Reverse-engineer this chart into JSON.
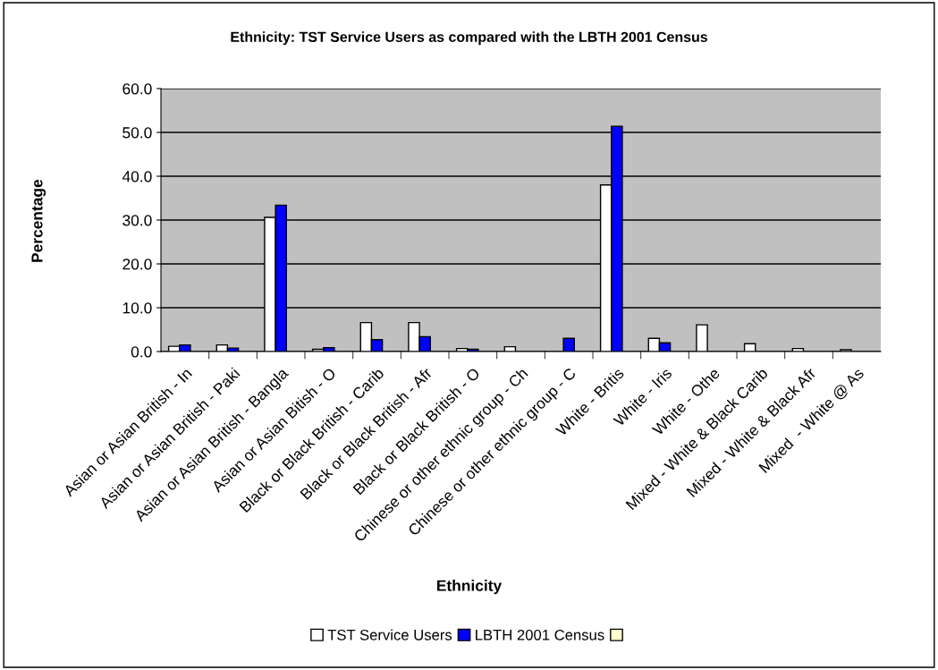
{
  "chart_data": {
    "type": "bar",
    "title": "Ethnicity: TST Service Users as compared with the LBTH 2001 Census",
    "xlabel": "Ethnicity",
    "ylabel": "Percentage",
    "categories": [
      "Asian or Asian British - In",
      "Asian or Asian British - Paki",
      "Asian or Asian British - Bangla",
      "Asian or Asian Bitish - O",
      "Black or Black British - Carib",
      "Black or Black British - Afr",
      "Black or Black British - O",
      "Chinese or other ethnic group - Ch",
      "Chinese or other ethnic group - C",
      "White - Britis",
      "White - Iris",
      "White - Othe",
      "Mixed - White & Black Carib",
      "Mixed - White & Black Afr",
      "Mixed  - White @ As"
    ],
    "series": [
      {
        "name": "TST Service Users",
        "color": "#ffffff",
        "values": [
          1.2,
          1.5,
          30.6,
          0.5,
          6.6,
          6.6,
          0.7,
          1.1,
          null,
          38.0,
          3.0,
          6.1,
          1.8,
          0.7,
          0.4
        ]
      },
      {
        "name": "LBTH 2001 Census",
        "color": "#0000ff",
        "values": [
          1.5,
          0.8,
          33.4,
          0.9,
          2.7,
          3.4,
          0.5,
          null,
          3.0,
          51.4,
          2.0,
          null,
          null,
          null,
          null
        ]
      },
      {
        "color": "#ffffcc",
        "values": [
          null,
          null,
          null,
          null,
          null,
          null,
          null,
          null,
          null,
          null,
          null,
          null,
          null,
          null,
          null
        ]
      }
    ],
    "ylim": [
      0,
      60
    ],
    "yticks": [
      {
        "value": 0,
        "label": "0.0"
      },
      {
        "value": 10,
        "label": "10.0"
      },
      {
        "value": 20,
        "label": "20.0"
      },
      {
        "value": 30,
        "label": "30.0"
      },
      {
        "value": 40,
        "label": "40.0"
      },
      {
        "value": 50,
        "label": "50.0"
      },
      {
        "value": 60,
        "label": "60.0"
      }
    ],
    "grid": "y",
    "legend": "bottom"
  }
}
